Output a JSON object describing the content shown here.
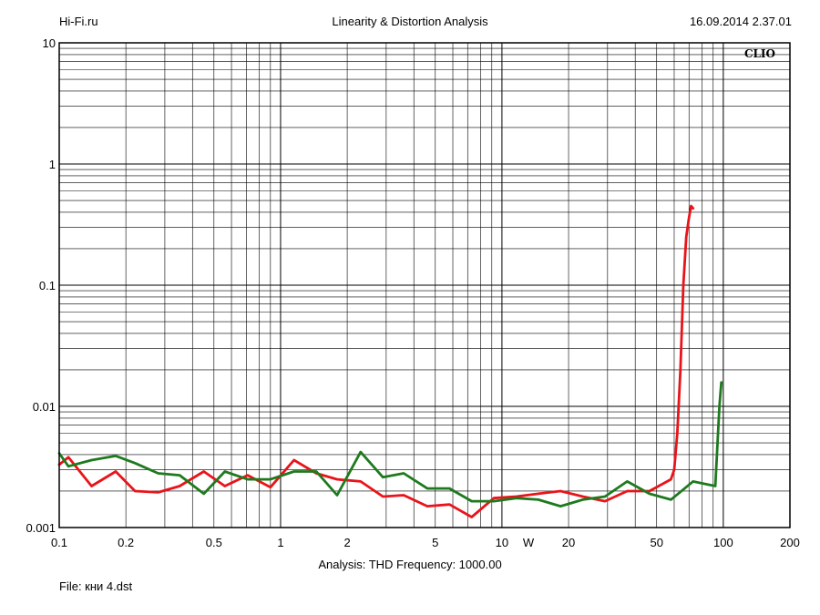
{
  "header": {
    "left": "Hi-Fi.ru",
    "title": "Linearity & Distortion Analysis",
    "timestamp": "16.09.2014 2.37.01"
  },
  "chart_data": {
    "type": "line",
    "watermark": "CLIO",
    "x_scale": "log",
    "y_scale": "log",
    "xlim": [
      0.1,
      200
    ],
    "ylim": [
      0.001,
      10
    ],
    "x_ticks": [
      {
        "value": 0.1,
        "label": "0.1"
      },
      {
        "value": 0.2,
        "label": "0.2"
      },
      {
        "value": 0.5,
        "label": "0.5"
      },
      {
        "value": 1,
        "label": "1"
      },
      {
        "value": 2,
        "label": "2"
      },
      {
        "value": 5,
        "label": "5"
      },
      {
        "value": 10,
        "label": "10"
      },
      {
        "value": 20,
        "label": "20"
      },
      {
        "value": 50,
        "label": "50"
      },
      {
        "value": 100,
        "label": "100"
      },
      {
        "value": 200,
        "label": "200"
      }
    ],
    "x_unit_label": "W",
    "y_ticks": [
      {
        "value": 10,
        "label": "10"
      },
      {
        "value": 1,
        "label": "1"
      },
      {
        "value": 0.1,
        "label": "0.1"
      },
      {
        "value": 0.01,
        "label": "0.01"
      },
      {
        "value": 0.001,
        "label": "0.001"
      }
    ],
    "grid": true,
    "series": [
      {
        "color": "#e8141a",
        "points": [
          [
            0.1,
            0.0033
          ],
          [
            0.11,
            0.0038
          ],
          [
            0.14,
            0.0022
          ],
          [
            0.18,
            0.0029
          ],
          [
            0.22,
            0.002
          ],
          [
            0.28,
            0.00195
          ],
          [
            0.35,
            0.0022
          ],
          [
            0.45,
            0.0029
          ],
          [
            0.56,
            0.0022
          ],
          [
            0.71,
            0.0027
          ],
          [
            0.9,
            0.00215
          ],
          [
            1.15,
            0.0036
          ],
          [
            1.45,
            0.0028
          ],
          [
            1.8,
            0.0025
          ],
          [
            2.3,
            0.0024
          ],
          [
            2.9,
            0.0018
          ],
          [
            3.6,
            0.00185
          ],
          [
            4.6,
            0.0015
          ],
          [
            5.8,
            0.00155
          ],
          [
            7.3,
            0.00122
          ],
          [
            9.2,
            0.00175
          ],
          [
            11.6,
            0.0018
          ],
          [
            14.6,
            0.0019
          ],
          [
            18.4,
            0.002
          ],
          [
            23.2,
            0.0018
          ],
          [
            29.2,
            0.00165
          ],
          [
            36.8,
            0.002
          ],
          [
            46.4,
            0.002
          ],
          [
            58,
            0.0025
          ],
          [
            60,
            0.003
          ],
          [
            62,
            0.006
          ],
          [
            64,
            0.02
          ],
          [
            66,
            0.1
          ],
          [
            68,
            0.25
          ],
          [
            70,
            0.36
          ],
          [
            71.5,
            0.45
          ],
          [
            73,
            0.43
          ]
        ]
      },
      {
        "color": "#1e7a1e",
        "points": [
          [
            0.1,
            0.0041
          ],
          [
            0.11,
            0.0032
          ],
          [
            0.14,
            0.0036
          ],
          [
            0.18,
            0.0039
          ],
          [
            0.22,
            0.0034
          ],
          [
            0.28,
            0.0028
          ],
          [
            0.35,
            0.0027
          ],
          [
            0.45,
            0.0019
          ],
          [
            0.56,
            0.0029
          ],
          [
            0.71,
            0.0025
          ],
          [
            0.9,
            0.0025
          ],
          [
            1.15,
            0.0029
          ],
          [
            1.45,
            0.0029
          ],
          [
            1.8,
            0.00185
          ],
          [
            2.3,
            0.0042
          ],
          [
            2.9,
            0.0026
          ],
          [
            3.6,
            0.0028
          ],
          [
            4.6,
            0.0021
          ],
          [
            5.8,
            0.0021
          ],
          [
            7.3,
            0.00165
          ],
          [
            9.2,
            0.00165
          ],
          [
            11.6,
            0.00175
          ],
          [
            14.6,
            0.0017
          ],
          [
            18.4,
            0.0015
          ],
          [
            23.2,
            0.0017
          ],
          [
            29.2,
            0.0018
          ],
          [
            36.8,
            0.0024
          ],
          [
            46.4,
            0.0019
          ],
          [
            58,
            0.0017
          ],
          [
            73,
            0.0024
          ],
          [
            92,
            0.0022
          ],
          [
            96,
            0.01
          ],
          [
            98,
            0.0158
          ]
        ]
      }
    ]
  },
  "footer": {
    "analysis_label": "Analysis: THD   Frequency: 1000.00",
    "file_label": "File: кни 4.dst"
  }
}
